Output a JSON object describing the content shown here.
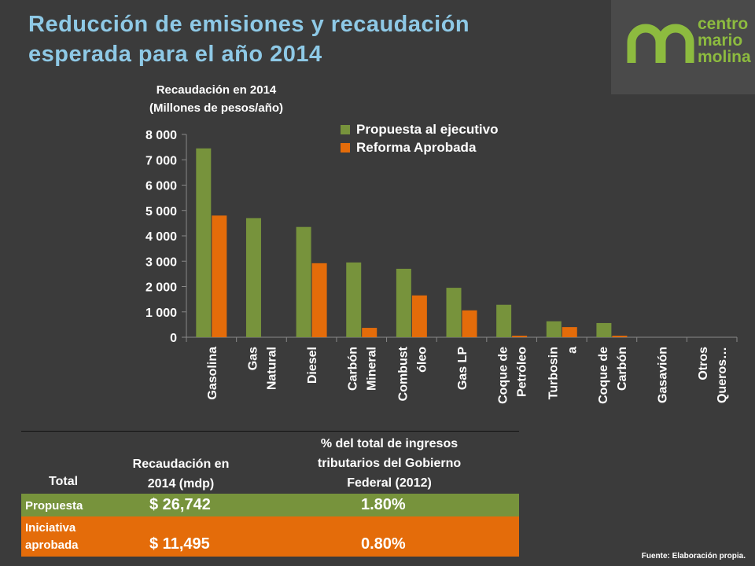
{
  "title": "Reducción de emisiones y recaudación esperada para el año 2014",
  "logo": {
    "lines": [
      "centro",
      "mario",
      "molina"
    ]
  },
  "chart_data": {
    "type": "bar",
    "title": "Recaudación en 2014 (Millones de pesos/año)",
    "title_lines": [
      "Recaudación en 2014",
      "(Millones de pesos/año)"
    ],
    "categories": [
      "Gasolina",
      "Gas Natural",
      "Diesel",
      "Carbón Mineral",
      "Combustóleo",
      "Gas LP",
      "Coque de Petróleo",
      "Turbosina",
      "Coque de Carbón",
      "Gasavión",
      "Otros Querosenos"
    ],
    "category_lines": [
      [
        "Gasolina"
      ],
      [
        "Gas",
        "Natural"
      ],
      [
        "Diesel"
      ],
      [
        "Carbón",
        "Mineral"
      ],
      [
        "Combust",
        "óleo"
      ],
      [
        "Gas LP"
      ],
      [
        "Coque de",
        "Petróleo"
      ],
      [
        "Turbosin",
        "a"
      ],
      [
        "Coque de",
        "Carbón"
      ],
      [
        "Gasavión"
      ],
      [
        "Otros",
        "Queros…"
      ]
    ],
    "series": [
      {
        "name": "Propuesta al ejecutivo",
        "color": "#77933c",
        "values": [
          7450,
          4700,
          4350,
          2950,
          2700,
          1950,
          1280,
          630,
          560,
          0,
          0
        ]
      },
      {
        "name": "Reforma Aprobada",
        "color": "#e46c0a",
        "values": [
          4800,
          0,
          2920,
          370,
          1650,
          1060,
          60,
          400,
          60,
          0,
          0
        ]
      }
    ],
    "ylim": [
      0,
      8000
    ],
    "yticks": [
      0,
      1000,
      2000,
      3000,
      4000,
      5000,
      6000,
      7000,
      8000
    ],
    "ytick_labels": [
      "0",
      "1 000",
      "2 000",
      "3 000",
      "4 000",
      "5 000",
      "6 000",
      "7 000",
      "8 000"
    ],
    "legend_position": "top-right",
    "grid": false
  },
  "table": {
    "headers": {
      "total": "Total",
      "recaudacion": [
        "Recaudación en",
        "2014 (mdp)"
      ],
      "porcentaje": [
        "% del total de ingresos",
        "tributarios del Gobierno",
        "Federal (2012)"
      ]
    },
    "rows": [
      {
        "label_lines": [
          "Propuesta"
        ],
        "amount": "$ 26,742",
        "percent": "1.80%",
        "color": "#77933c"
      },
      {
        "label_lines": [
          "Iniciativa",
          "aprobada"
        ],
        "amount": "$ 11,495",
        "percent": "0.80%",
        "color": "#e46c0a"
      }
    ]
  },
  "source": "Fuente: Elaboración propia."
}
